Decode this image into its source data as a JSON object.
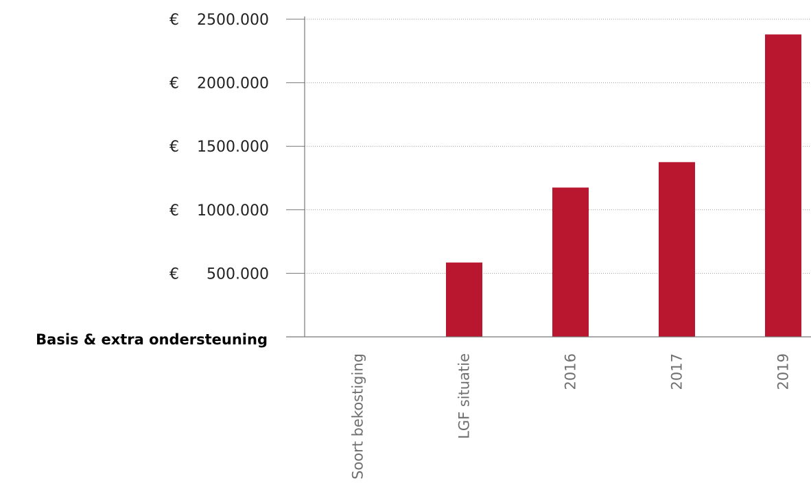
{
  "chart_data": {
    "type": "bar",
    "row_label": "Basis & extra ondersteuning",
    "categories": [
      "Soort bekostiging",
      "LGF situatie",
      "2016",
      "2017",
      "2019"
    ],
    "values": [
      0,
      585000,
      1175000,
      1375000,
      2380000
    ],
    "ylim": [
      0,
      2500000
    ],
    "yticks": [
      {
        "value": 500000,
        "currency": "€",
        "label": "500.000"
      },
      {
        "value": 1000000,
        "currency": "€",
        "label": "1000.000"
      },
      {
        "value": 1500000,
        "currency": "€",
        "label": "1500.000"
      },
      {
        "value": 2000000,
        "currency": "€",
        "label": "2000.000"
      },
      {
        "value": 2500000,
        "currency": "€",
        "label": "2500.000"
      }
    ],
    "grid": true,
    "bar_color": "#b8172f",
    "grid_color": "#9a9a9a",
    "axis_color": "#777777"
  }
}
